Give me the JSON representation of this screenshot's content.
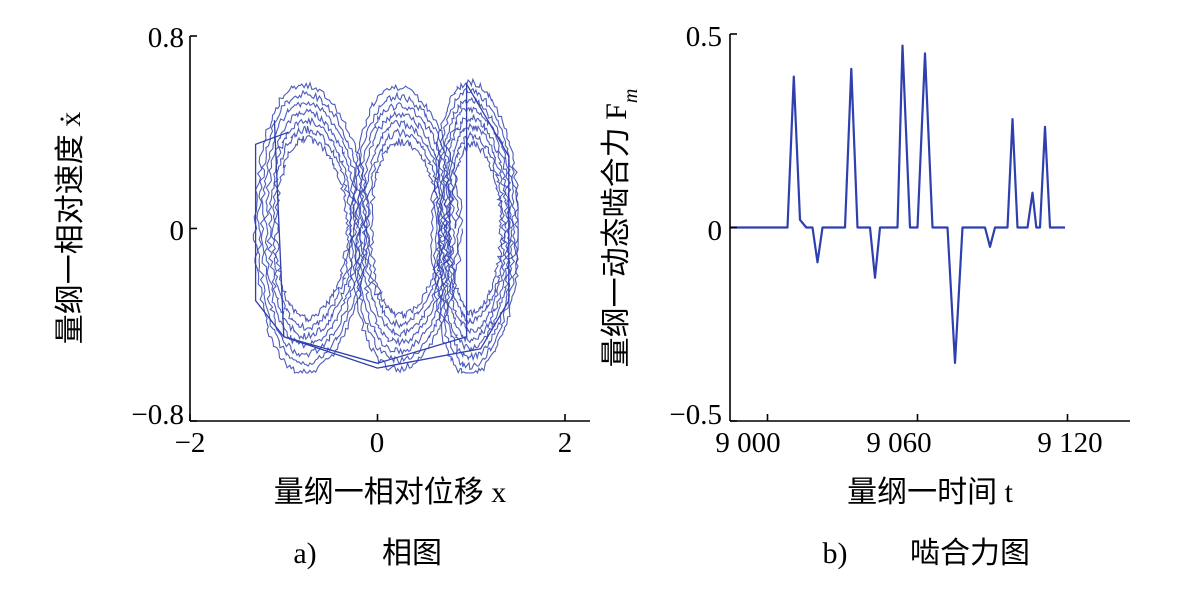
{
  "chart_data": [
    {
      "type": "line",
      "caption_letter": "a)",
      "caption_title": "相图",
      "xlabel": "量纲一相对位移 x",
      "ylabel": "量纲一相对速度 ẋ",
      "xlim": [
        -2,
        2
      ],
      "ylim": [
        -0.8,
        0.8
      ],
      "x_ticks": [
        -2,
        0,
        2
      ],
      "x_tick_labels": [
        "−2",
        "0",
        "2"
      ],
      "y_ticks": [
        -0.8,
        0,
        0.8
      ],
      "y_tick_labels": [
        "−0.8",
        "0",
        "0.8"
      ],
      "line_color": "#2e3fae",
      "grid": false,
      "series": [
        {
          "x": [
            -0.95,
            -1.3,
            -1.3,
            -1.0,
            0.0,
            0.95,
            0.95,
            0.95,
            1.4,
            1.4,
            1.1,
            0.0,
            -1.0,
            -1.1
          ],
          "y": [
            0.4,
            0.35,
            -0.3,
            -0.45,
            -0.56,
            -0.45,
            0.0,
            0.6,
            0.3,
            -0.3,
            -0.5,
            -0.58,
            -0.45,
            0.45
          ]
        }
      ]
    },
    {
      "type": "line",
      "caption_letter": "b)",
      "caption_title": "啮合力图",
      "xlabel": "量纲一时间 t",
      "ylabel": "量纲一动态啮合力 F",
      "ylabel_subscript": "m",
      "xlim": [
        8985,
        9145
      ],
      "ylim": [
        -0.5,
        0.5
      ],
      "x_ticks": [
        9000,
        9060,
        9120
      ],
      "x_tick_labels": [
        "9 000",
        "9 060",
        "9 120"
      ],
      "y_ticks": [
        -0.5,
        0,
        0.5
      ],
      "y_tick_labels": [
        "−0.5",
        "0",
        "0.5"
      ],
      "line_color": "#2e3fae",
      "grid": false,
      "series": [
        {
          "x": [
            8985,
            9008,
            9010.5,
            9013,
            9015.5,
            9018,
            9020,
            9022,
            9024,
            9026,
            9029,
            9031,
            9033.5,
            9036,
            9038.5,
            9041,
            9043,
            9045,
            9047,
            9049,
            9052,
            9054,
            9057,
            9060,
            9063,
            9066,
            9069,
            9072,
            9075,
            9078,
            9080,
            9083,
            9085,
            9087,
            9089,
            9091,
            9093,
            9096,
            9098,
            9100,
            9102,
            9104,
            9106,
            9107.5,
            9109,
            9111,
            9113,
            9115,
            9117,
            9119
          ],
          "y": [
            0,
            0,
            0.39,
            0.02,
            0,
            0,
            -0.09,
            0,
            0,
            0,
            0,
            0,
            0.41,
            0,
            0,
            0,
            -0.13,
            0,
            0,
            0,
            0,
            0.47,
            0,
            0,
            0.45,
            0,
            0,
            0,
            -0.35,
            0,
            0,
            0,
            0,
            0,
            -0.05,
            0,
            0,
            0,
            0.28,
            0,
            0,
            0,
            0.09,
            0,
            0,
            0.26,
            0,
            0,
            0,
            0
          ]
        }
      ]
    }
  ]
}
